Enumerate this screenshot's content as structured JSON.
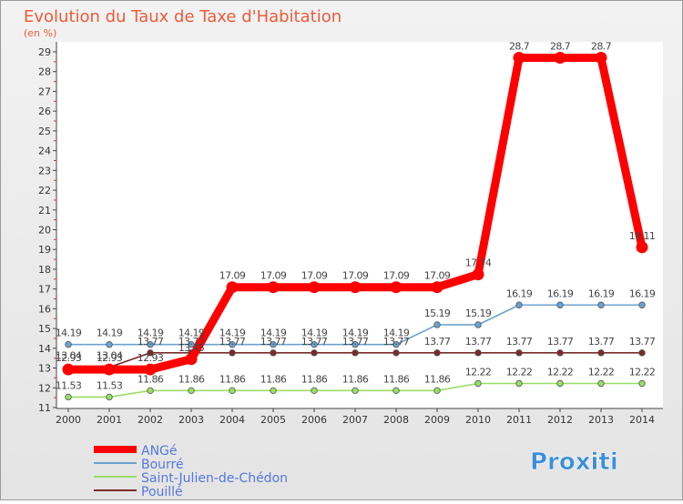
{
  "chart_data": {
    "type": "line",
    "title": "Evolution du Taux de Taxe d'Habitation",
    "subtitle": "(en %)",
    "x": [
      "2000",
      "2001",
      "2002",
      "2003",
      "2004",
      "2005",
      "2006",
      "2007",
      "2008",
      "2009",
      "2010",
      "2011",
      "2012",
      "2013",
      "2014"
    ],
    "ylim": [
      11,
      29
    ],
    "yticks": [
      11,
      12,
      13,
      14,
      15,
      16,
      17,
      18,
      19,
      20,
      21,
      22,
      23,
      24,
      25,
      26,
      27,
      28,
      29
    ],
    "grid": false,
    "legend_position": "bottom-left",
    "series": [
      {
        "name": "ANGé",
        "color": "#ff0000",
        "values": [
          12.93,
          12.93,
          12.93,
          13.45,
          17.09,
          17.09,
          17.09,
          17.09,
          17.09,
          17.09,
          17.74,
          28.7,
          28.7,
          28.7,
          19.11
        ],
        "labels": [
          "12.93",
          "12.93",
          "12.93",
          "13.45",
          "17.09",
          "17.09",
          "17.09",
          "17.09",
          "17.09",
          "17.09",
          "17.74",
          "28.7",
          "28.7",
          "28.7",
          "19.11"
        ]
      },
      {
        "name": "Bourré",
        "color": "#6ba3d0",
        "values": [
          14.19,
          14.19,
          14.19,
          14.19,
          14.19,
          14.19,
          14.19,
          14.19,
          14.19,
          15.19,
          15.19,
          16.19,
          16.19,
          16.19,
          16.19
        ],
        "labels": [
          "14.19",
          "14.19",
          "14.19",
          "14.19",
          "14.19",
          "14.19",
          "14.19",
          "14.19",
          "14.19",
          "15.19",
          "15.19",
          "16.19",
          "16.19",
          "16.19",
          "16.19"
        ]
      },
      {
        "name": "Saint-Julien-de-Chédon",
        "color": "#99dd66",
        "values": [
          11.53,
          11.53,
          11.86,
          11.86,
          11.86,
          11.86,
          11.86,
          11.86,
          11.86,
          11.86,
          12.22,
          12.22,
          12.22,
          12.22,
          12.22
        ],
        "labels": [
          "11.53",
          "11.53",
          "11.86",
          "11.86",
          "11.86",
          "11.86",
          "11.86",
          "11.86",
          "11.86",
          "11.86",
          "12.22",
          "12.22",
          "12.22",
          "12.22",
          "12.22"
        ]
      },
      {
        "name": "Pouillé",
        "color": "#7a2a2a",
        "values": [
          13.04,
          13.04,
          13.77,
          13.77,
          13.77,
          13.77,
          13.77,
          13.77,
          13.77,
          13.77,
          13.77,
          13.77,
          13.77,
          13.77,
          13.77
        ],
        "labels": [
          "13.04",
          "13.04",
          "13.77",
          "13.77",
          "13.77",
          "13.77",
          "13.77",
          "13.77",
          "13.77",
          "13.77",
          "13.77",
          "13.77",
          "13.77",
          "13.77",
          "13.77"
        ]
      }
    ]
  },
  "logo": {
    "text": "Proxiti"
  }
}
